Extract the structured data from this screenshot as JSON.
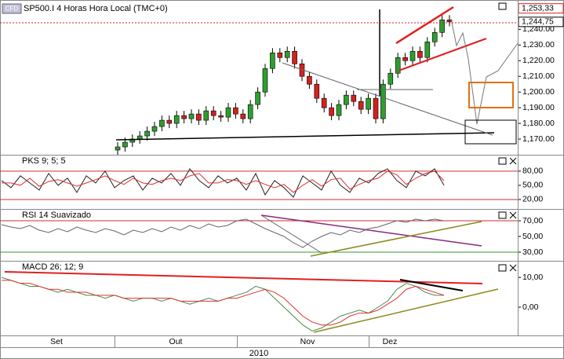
{
  "title": "SP500.I 4 Horas Hora Local (TMC+0)",
  "badge": "CFD",
  "xlabels": [
    "Set",
    "Out",
    "Nov",
    "Dez"
  ],
  "year": "2010",
  "chart_data": [
    {
      "type": "candlestick",
      "up_color": "#2e9e2e",
      "down_color": "#d42020",
      "open": [
        1163,
        1165,
        1168,
        1170,
        1172,
        1175,
        1178,
        1182,
        1180,
        1185,
        1183,
        1186,
        1182,
        1188,
        1185,
        1184,
        1190,
        1186,
        1183,
        1192,
        1200,
        1215,
        1225,
        1222,
        1226,
        1218,
        1210,
        1205,
        1196,
        1190,
        1185,
        1192,
        1198,
        1194,
        1189,
        1196,
        1183,
        1205,
        1212,
        1222,
        1220,
        1226,
        1222,
        1232,
        1238,
        1246
      ],
      "high": [
        1168,
        1171,
        1173,
        1175,
        1178,
        1181,
        1185,
        1185,
        1188,
        1188,
        1189,
        1189,
        1191,
        1191,
        1188,
        1193,
        1193,
        1189,
        1195,
        1203,
        1218,
        1228,
        1228,
        1229,
        1229,
        1221,
        1213,
        1208,
        1199,
        1193,
        1195,
        1201,
        1201,
        1197,
        1199,
        1199,
        1208,
        1215,
        1225,
        1225,
        1229,
        1229,
        1235,
        1241,
        1249,
        1249
      ],
      "low": [
        1160,
        1162,
        1165,
        1167,
        1169,
        1172,
        1175,
        1177,
        1177,
        1180,
        1180,
        1179,
        1179,
        1182,
        1181,
        1181,
        1183,
        1180,
        1180,
        1189,
        1197,
        1212,
        1219,
        1219,
        1215,
        1207,
        1202,
        1193,
        1187,
        1182,
        1182,
        1189,
        1191,
        1186,
        1186,
        1180,
        1180,
        1202,
        1209,
        1217,
        1217,
        1219,
        1219,
        1229,
        1235,
        1242
      ],
      "close": [
        1165,
        1168,
        1170,
        1172,
        1175,
        1178,
        1182,
        1180,
        1185,
        1183,
        1186,
        1182,
        1188,
        1185,
        1184,
        1190,
        1186,
        1183,
        1192,
        1200,
        1215,
        1225,
        1222,
        1226,
        1218,
        1210,
        1205,
        1196,
        1190,
        1185,
        1192,
        1198,
        1194,
        1189,
        1196,
        1183,
        1205,
        1212,
        1222,
        1220,
        1226,
        1222,
        1232,
        1238,
        1246,
        1244.75
      ],
      "ylim": [
        1160,
        1257.7
      ],
      "yticks": [
        {
          "value": 1170,
          "label": "1,170.00"
        },
        {
          "value": 1180,
          "label": "1,180.00"
        },
        {
          "value": 1190,
          "label": "1,190.00"
        },
        {
          "value": 1200,
          "label": "1,200.00"
        },
        {
          "value": 1210,
          "label": "1,210.00"
        },
        {
          "value": 1220,
          "label": "1,220.00"
        },
        {
          "value": 1230,
          "label": "1,230.00"
        },
        {
          "value": 1240,
          "label": "1,240.00"
        }
      ],
      "markers": [
        {
          "value": 1253.33,
          "label": "1,253,33",
          "color": "#d42020"
        },
        {
          "value": 1244.75,
          "label": "1,244,75",
          "color": "#000000"
        }
      ]
    },
    {
      "type": "line",
      "title": "PKS 9; 5; 5",
      "series": [
        {
          "color": "#222222",
          "values": [
            60,
            45,
            70,
            55,
            40,
            75,
            50,
            65,
            35,
            70,
            55,
            80,
            45,
            60,
            70,
            40,
            65,
            55,
            75,
            50,
            85,
            60,
            45,
            70,
            55,
            65,
            40,
            75,
            30,
            60,
            45,
            25,
            70,
            55,
            40,
            80,
            50,
            35,
            65,
            55,
            75,
            85,
            60,
            45,
            80,
            70,
            85,
            50
          ]
        },
        {
          "color": "#e03030",
          "values": [
            55,
            55,
            50,
            65,
            48,
            58,
            62,
            55,
            48,
            55,
            62,
            70,
            60,
            52,
            65,
            55,
            52,
            60,
            65,
            60,
            70,
            75,
            55,
            55,
            62,
            60,
            52,
            60,
            52,
            45,
            52,
            35,
            50,
            62,
            48,
            62,
            65,
            42,
            52,
            60,
            65,
            80,
            72,
            52,
            65,
            75,
            80,
            60
          ]
        }
      ],
      "ylim": [
        0,
        113
      ],
      "yticks": [
        {
          "value": 20,
          "label": "20,00"
        },
        {
          "value": 50,
          "label": "50,00"
        },
        {
          "value": 80,
          "label": "80,00"
        }
      ],
      "levels": [
        {
          "value": 80,
          "color": "#c83030"
        },
        {
          "value": 20,
          "color": "#c83030"
        }
      ]
    },
    {
      "type": "line",
      "title": "RSI 14 Suavizado",
      "series": [
        {
          "color": "#666666",
          "values": [
            65,
            62,
            60,
            64,
            58,
            55,
            60,
            56,
            62,
            58,
            55,
            60,
            57,
            52,
            58,
            55,
            60,
            56,
            62,
            58,
            64,
            60,
            66,
            62,
            64,
            70,
            72,
            66,
            60,
            55,
            50,
            42,
            36,
            44,
            50,
            55,
            52,
            58,
            55,
            60,
            62,
            66,
            70,
            68,
            72,
            70,
            72,
            70
          ]
        }
      ],
      "ylim": [
        19,
        84
      ],
      "yticks": [
        {
          "value": 30,
          "label": "30,00"
        },
        {
          "value": 50,
          "label": "50,00"
        },
        {
          "value": 70,
          "label": "70,00"
        }
      ],
      "levels": [
        {
          "value": 70,
          "color": "#c83030"
        },
        {
          "value": 30,
          "color": "#2e9e2e"
        }
      ]
    },
    {
      "type": "line",
      "title": "MACD 26; 12; 9",
      "title_color": "#2e8e2e",
      "series": [
        {
          "color": "#4a8a4a",
          "values": [
            10,
            9,
            8,
            7,
            7,
            6,
            5,
            6,
            5,
            4,
            4,
            3,
            4,
            3,
            2,
            3,
            3,
            2,
            3,
            2,
            1,
            2,
            3,
            2,
            3,
            4,
            5,
            7,
            6,
            3,
            0,
            -3,
            -6,
            -8,
            -7,
            -5,
            -3,
            -2,
            -1,
            -2,
            0,
            2,
            6,
            8,
            7,
            5,
            4,
            4
          ]
        },
        {
          "color": "#e03030",
          "values": [
            9,
            9,
            8,
            8,
            7,
            6,
            6,
            5,
            5,
            5,
            4,
            4,
            4,
            3,
            3,
            3,
            3,
            3,
            3,
            2,
            2,
            2,
            2,
            2,
            3,
            3,
            4,
            5,
            6,
            5,
            3,
            0,
            -3,
            -5,
            -6,
            -6,
            -5,
            -3,
            -2,
            -2,
            -1,
            1,
            3,
            6,
            7,
            6,
            5,
            4
          ]
        }
      ],
      "ylim": [
        -9.5,
        15.3
      ],
      "yticks": [
        {
          "value": 0,
          "label": "0,00"
        },
        {
          "value": 10,
          "label": "10,00"
        }
      ]
    }
  ]
}
